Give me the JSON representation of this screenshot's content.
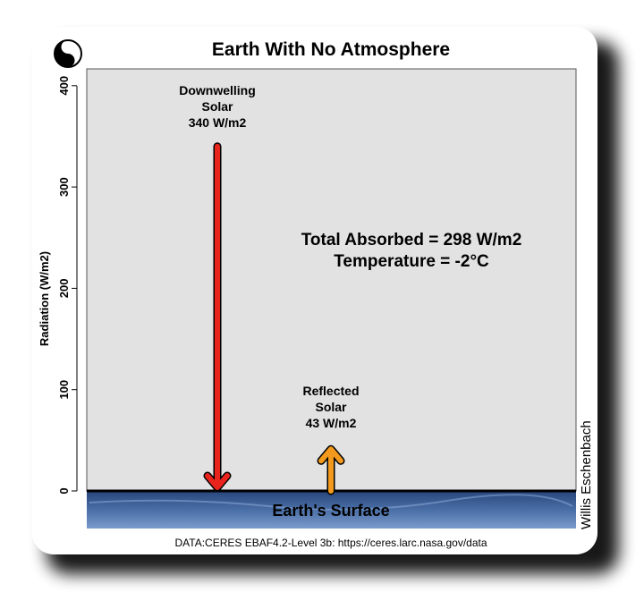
{
  "chart_data": {
    "type": "bar",
    "title": "Earth With No Atmosphere",
    "ylabel": "Radiation (W/m2)",
    "xlabel": "",
    "ylim": [
      -37,
      413
    ],
    "yticks": [
      0,
      100,
      200,
      300,
      400
    ],
    "grid": false,
    "series": [
      {
        "label_lines": [
          "Downwelling",
          "Solar",
          "340 W/m2"
        ],
        "value": 340,
        "direction": "down",
        "color": "#e8241c"
      },
      {
        "label_lines": [
          "Reflected",
          "Solar",
          "43 W/m2"
        ],
        "value": 43,
        "direction": "up",
        "color": "#f39a1e"
      }
    ],
    "annotations": [
      "Total Absorbed = 298 W/m2",
      "Temperature = -2°C"
    ],
    "surface_label": "Earth's Surface",
    "source": "DATA:CERES EBAF4.2-Level 3b: https://ceres.larc.nasa.gov/data",
    "credit": "Willis Eschenbach"
  },
  "colors": {
    "panel": "#e2e2e2",
    "surface_top": "#2e4e86",
    "surface_bottom": "#6a8ec2"
  },
  "logo_icon": "yin-yang-face-icon"
}
